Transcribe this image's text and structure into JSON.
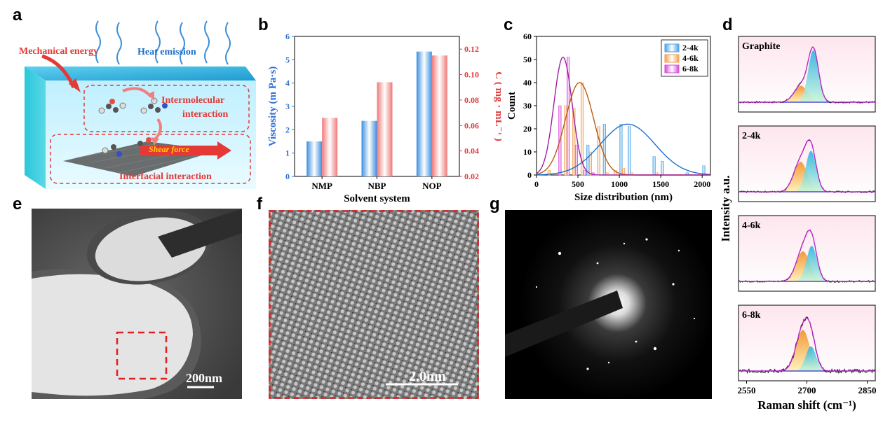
{
  "panels": {
    "a": "a",
    "b": "b",
    "c": "c",
    "d": "d",
    "e": "e",
    "f": "f",
    "g": "g"
  },
  "panel_a": {
    "mechanical_energy": "Mechanical energy",
    "heat_emission": "Heat emission",
    "intermolecular": [
      "Intermolecular",
      "interaction"
    ],
    "shear_force": "Shear force",
    "interfacial": "Interfacial interaction"
  },
  "panel_e": {
    "scale": "200nm"
  },
  "panel_f": {
    "scale": "2.0nm"
  },
  "colors": {
    "blue": "#2f6fd6",
    "red": "#e03c3c",
    "orange": "#e67e22",
    "magenta": "#c026d3",
    "cyan": "#1fb6d3"
  },
  "chart_data": [
    {
      "id": "b",
      "type": "bar",
      "categories": [
        "NMP",
        "NBP",
        "NOP"
      ],
      "series": [
        {
          "name": "",
          "axis": "left",
          "values": [
            1.5,
            2.38,
            5.35
          ],
          "color": "#3a8fe0"
        },
        {
          "name": "",
          "axis": "right",
          "values": [
            0.066,
            0.094,
            0.115
          ],
          "color": "#f07a7a"
        }
      ],
      "xlabel": "Solvent system",
      "ylabel_left": "Viscosity (m Pa·s)",
      "ylabel_right": "C ( mg · mL⁻¹ )",
      "ylim_left": [
        0,
        6
      ],
      "ylim_right": [
        0.02,
        0.13
      ],
      "yticks_left": [
        "0",
        "1",
        "2",
        "3",
        "4",
        "5",
        "6"
      ],
      "yticks_right": [
        "0.02",
        "0.04",
        "0.06",
        "0.08",
        "0.10",
        "0.12"
      ],
      "grid": false
    },
    {
      "id": "c",
      "type": "bar",
      "categories": [
        150,
        250,
        350,
        450,
        550,
        650,
        750,
        850,
        950,
        1050,
        1150,
        1250,
        1350,
        1450,
        1550,
        1650,
        1850,
        2050
      ],
      "series": [
        {
          "name": "2-4k",
          "values": [
            0,
            0,
            0,
            0,
            0,
            13,
            0,
            22,
            0,
            22,
            21,
            0,
            0,
            8,
            6,
            0,
            1,
            4
          ],
          "color": "#4aa3e8",
          "fit_center": 1100,
          "fit_peak": 22
        },
        {
          "name": "4-6k",
          "values": [
            2,
            0,
            30,
            29,
            40,
            10,
            21,
            1,
            2,
            3,
            1,
            0,
            0,
            1,
            0,
            0,
            0,
            0
          ],
          "color": "#f0a050",
          "fit_center": 520,
          "fit_peak": 40
        },
        {
          "name": "6-8k",
          "values": [
            0,
            30,
            51,
            13,
            2,
            1,
            0,
            0,
            0,
            0,
            0,
            0,
            0,
            0,
            0,
            0,
            0,
            0
          ],
          "color": "#d94ad9",
          "fit_center": 320,
          "fit_peak": 51
        }
      ],
      "xlabel": "Size distribution (nm)",
      "ylabel": "Count",
      "xlim": [
        0,
        2100
      ],
      "ylim": [
        0,
        60
      ],
      "xticks": [
        "0",
        "500",
        "1000",
        "1500",
        "2000"
      ],
      "yticks": [
        "0",
        "10",
        "20",
        "30",
        "40",
        "50",
        "60"
      ],
      "legend": "top-right"
    },
    {
      "id": "d",
      "type": "line",
      "subplots": [
        {
          "label": "Graphite",
          "peak1_center": 2685,
          "peak1_height": 0.3,
          "peak2_center": 2716,
          "peak2_height": 0.95
        },
        {
          "label": "2-4k",
          "peak1_center": 2684,
          "peak1_height": 0.55,
          "peak2_center": 2710,
          "peak2_height": 0.75
        },
        {
          "label": "4-6k",
          "peak1_center": 2690,
          "peak1_height": 0.55,
          "peak2_center": 2712,
          "peak2_height": 0.65
        },
        {
          "label": "6-8k",
          "peak1_center": 2690,
          "peak1_height": 0.75,
          "peak2_center": 2710,
          "peak2_height": 0.45
        }
      ],
      "xlabel": "Raman shift (cm⁻¹)",
      "ylabel": "Intensity a.u.",
      "xlim": [
        2530,
        2870
      ],
      "xticks": [
        "2550",
        "2700",
        "2850"
      ]
    }
  ]
}
